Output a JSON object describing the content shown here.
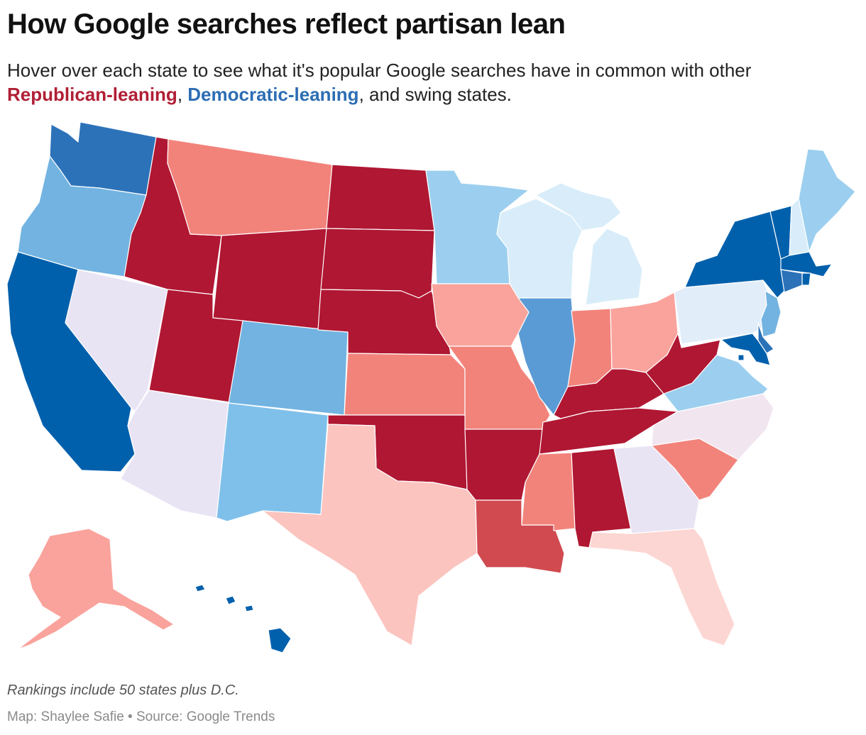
{
  "header": {
    "title": "How Google searches reflect partisan lean",
    "subtitle_prefix": "Hover over each state to see what it's popular Google searches have in common with other",
    "subtitle_rep": "Republican-leaning",
    "subtitle_sep1": ", ",
    "subtitle_dem": "Democratic-leaning",
    "subtitle_suffix": ", and swing states."
  },
  "colors": {
    "rep_strong": "#b01732",
    "rep_dark": "#d04a50",
    "rep_mid": "#f2837b",
    "rep_light": "#f9a39c",
    "rep_pale": "#fcc4bf",
    "rep_faint": "#fcd6d2",
    "swing": "#e9e4f4",
    "swing_pink": "#f1e6f0",
    "dem_faint": "#e2edfa",
    "dem_pale": "#d8edf9",
    "dem_light": "#9ccfef",
    "dem_mid": "#72b3e1",
    "dem_sky": "#7fc0ea",
    "dem_med": "#5b9bd5",
    "dem_dark": "#2c72b8",
    "dem_strong": "#0060ac"
  },
  "states": [
    {
      "abbr": "WA",
      "tier": "dem_dark"
    },
    {
      "abbr": "OR",
      "tier": "dem_mid"
    },
    {
      "abbr": "CA",
      "tier": "dem_strong"
    },
    {
      "abbr": "NV",
      "tier": "swing"
    },
    {
      "abbr": "ID",
      "tier": "rep_strong"
    },
    {
      "abbr": "MT",
      "tier": "rep_mid"
    },
    {
      "abbr": "WY",
      "tier": "rep_strong"
    },
    {
      "abbr": "UT",
      "tier": "rep_strong"
    },
    {
      "abbr": "AZ",
      "tier": "swing"
    },
    {
      "abbr": "CO",
      "tier": "dem_mid"
    },
    {
      "abbr": "NM",
      "tier": "dem_sky"
    },
    {
      "abbr": "ND",
      "tier": "rep_strong"
    },
    {
      "abbr": "SD",
      "tier": "rep_strong"
    },
    {
      "abbr": "NE",
      "tier": "rep_strong"
    },
    {
      "abbr": "KS",
      "tier": "rep_mid"
    },
    {
      "abbr": "OK",
      "tier": "rep_strong"
    },
    {
      "abbr": "TX",
      "tier": "rep_pale"
    },
    {
      "abbr": "MN",
      "tier": "dem_light"
    },
    {
      "abbr": "IA",
      "tier": "rep_light"
    },
    {
      "abbr": "MO",
      "tier": "rep_mid"
    },
    {
      "abbr": "AR",
      "tier": "rep_strong"
    },
    {
      "abbr": "LA",
      "tier": "rep_dark"
    },
    {
      "abbr": "WI",
      "tier": "dem_pale"
    },
    {
      "abbr": "MI",
      "tier": "dem_pale"
    },
    {
      "abbr": "IL",
      "tier": "dem_med"
    },
    {
      "abbr": "IN",
      "tier": "rep_mid"
    },
    {
      "abbr": "OH",
      "tier": "rep_light"
    },
    {
      "abbr": "KY",
      "tier": "rep_strong"
    },
    {
      "abbr": "TN",
      "tier": "rep_strong"
    },
    {
      "abbr": "MS",
      "tier": "rep_mid"
    },
    {
      "abbr": "AL",
      "tier": "rep_strong"
    },
    {
      "abbr": "GA",
      "tier": "swing"
    },
    {
      "abbr": "FL",
      "tier": "rep_faint"
    },
    {
      "abbr": "SC",
      "tier": "rep_mid"
    },
    {
      "abbr": "NC",
      "tier": "swing_pink"
    },
    {
      "abbr": "VA",
      "tier": "dem_light"
    },
    {
      "abbr": "WV",
      "tier": "rep_strong"
    },
    {
      "abbr": "PA",
      "tier": "dem_faint"
    },
    {
      "abbr": "NY",
      "tier": "dem_strong"
    },
    {
      "abbr": "VT",
      "tier": "dem_strong"
    },
    {
      "abbr": "NH",
      "tier": "dem_pale"
    },
    {
      "abbr": "ME",
      "tier": "dem_light"
    },
    {
      "abbr": "MA",
      "tier": "dem_strong"
    },
    {
      "abbr": "RI",
      "tier": "dem_strong"
    },
    {
      "abbr": "CT",
      "tier": "dem_dark"
    },
    {
      "abbr": "NJ",
      "tier": "dem_mid"
    },
    {
      "abbr": "DE",
      "tier": "dem_dark"
    },
    {
      "abbr": "MD",
      "tier": "dem_strong"
    },
    {
      "abbr": "DC",
      "tier": "dem_strong"
    },
    {
      "abbr": "AK",
      "tier": "rep_light"
    },
    {
      "abbr": "HI",
      "tier": "dem_strong"
    }
  ],
  "footer": {
    "note": "Rankings include 50 states plus D.C.",
    "byline": "Map: Shaylee Safie • Source: Google Trends"
  }
}
